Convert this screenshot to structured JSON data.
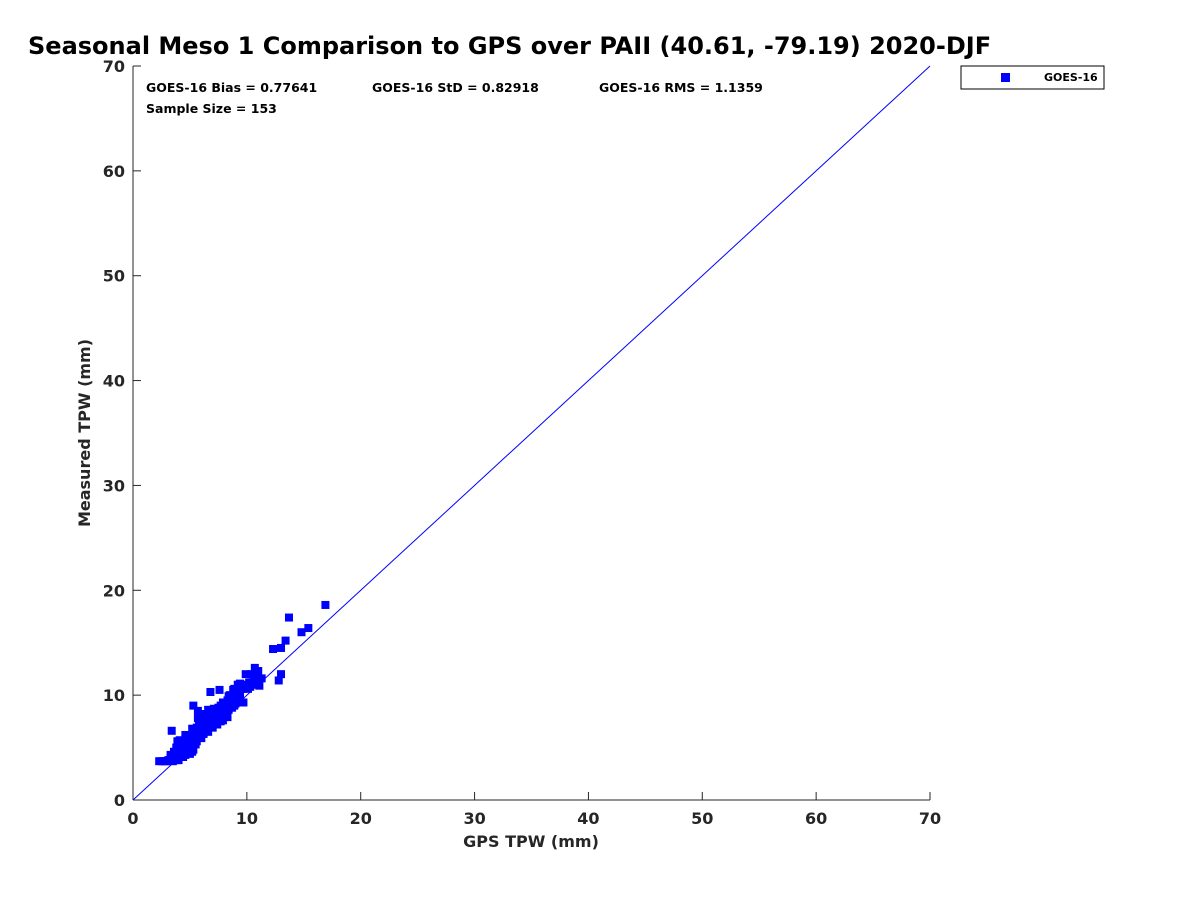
{
  "chart_data": {
    "type": "scatter",
    "title": "Seasonal Meso 1 Comparison to GPS over PAII (40.61, -79.19) 2020-DJF",
    "xlabel": "GPS TPW (mm)",
    "ylabel": "Measured TPW (mm)",
    "xlim": [
      0,
      70
    ],
    "ylim": [
      0,
      70
    ],
    "xticks": [
      0,
      10,
      20,
      30,
      40,
      50,
      60,
      70
    ],
    "yticks": [
      0,
      10,
      20,
      30,
      40,
      50,
      60,
      70
    ],
    "grid": false,
    "legend_position": "outside-top-right",
    "stats": {
      "bias": "GOES-16 Bias = 0.77641",
      "std": "GOES-16 StD = 0.82918",
      "rms": "GOES-16 RMS = 1.1359",
      "sample": "Sample Size = 153"
    },
    "reference_line": {
      "x": [
        0,
        70
      ],
      "y": [
        0,
        70
      ],
      "color": "#0000ff"
    },
    "series": [
      {
        "name": "GOES-16",
        "color": "#0000ff",
        "marker": "square",
        "points": [
          [
            2.3,
            3.7
          ],
          [
            2.6,
            3.7
          ],
          [
            2.9,
            3.7
          ],
          [
            3.1,
            3.8
          ],
          [
            3.3,
            4.0
          ],
          [
            3.5,
            3.7
          ],
          [
            3.6,
            4.2
          ],
          [
            3.8,
            3.9
          ],
          [
            3.9,
            4.5
          ],
          [
            4.0,
            3.8
          ],
          [
            3.6,
            4.6
          ],
          [
            3.8,
            5.0
          ],
          [
            3.9,
            5.6
          ],
          [
            4.1,
            4.3
          ],
          [
            4.2,
            5.0
          ],
          [
            4.3,
            4.7
          ],
          [
            4.4,
            5.3
          ],
          [
            4.5,
            4.5
          ],
          [
            4.6,
            5.8
          ],
          [
            4.7,
            5.0
          ],
          [
            4.8,
            4.7
          ],
          [
            4.9,
            5.5
          ],
          [
            5.0,
            4.4
          ],
          [
            5.0,
            6.0
          ],
          [
            5.1,
            5.2
          ],
          [
            5.2,
            5.6
          ],
          [
            5.3,
            6.1
          ],
          [
            5.3,
            4.8
          ],
          [
            5.4,
            5.9
          ],
          [
            5.5,
            6.5
          ],
          [
            5.6,
            5.6
          ],
          [
            5.6,
            6.9
          ],
          [
            5.7,
            6.2
          ],
          [
            5.8,
            7.4
          ],
          [
            5.9,
            6.6
          ],
          [
            6.0,
            5.9
          ],
          [
            6.0,
            7.7
          ],
          [
            6.1,
            6.9
          ],
          [
            6.2,
            8.2
          ],
          [
            6.2,
            6.3
          ],
          [
            6.3,
            7.2
          ],
          [
            6.4,
            6.7
          ],
          [
            6.5,
            7.9
          ],
          [
            6.6,
            6.5
          ],
          [
            6.6,
            8.6
          ],
          [
            6.7,
            7.3
          ],
          [
            6.8,
            7.0
          ],
          [
            6.9,
            8.1
          ],
          [
            7.0,
            7.6
          ],
          [
            7.0,
            6.9
          ],
          [
            7.1,
            8.7
          ],
          [
            7.2,
            7.4
          ],
          [
            7.3,
            8.0
          ],
          [
            7.4,
            7.2
          ],
          [
            7.5,
            8.5
          ],
          [
            7.6,
            7.8
          ],
          [
            7.7,
            9.0
          ],
          [
            7.8,
            8.2
          ],
          [
            7.9,
            7.6
          ],
          [
            8.0,
            8.8
          ],
          [
            8.1,
            8.3
          ],
          [
            8.2,
            9.2
          ],
          [
            8.3,
            7.9
          ],
          [
            8.4,
            8.6
          ],
          [
            8.5,
            10.0
          ],
          [
            8.6,
            9.4
          ],
          [
            8.7,
            8.8
          ],
          [
            8.8,
            10.5
          ],
          [
            8.9,
            9.0
          ],
          [
            9.0,
            10.2
          ],
          [
            9.1,
            9.6
          ],
          [
            9.2,
            11.0
          ],
          [
            9.3,
            10.4
          ],
          [
            9.4,
            9.9
          ],
          [
            9.5,
            10.8
          ],
          [
            9.6,
            10.6
          ],
          [
            9.7,
            9.3
          ],
          [
            9.8,
            11.0
          ],
          [
            9.9,
            12.0
          ],
          [
            10.1,
            10.6
          ],
          [
            10.2,
            11.2
          ],
          [
            10.4,
            12.0
          ],
          [
            10.6,
            11.4
          ],
          [
            10.7,
            12.6
          ],
          [
            10.9,
            11.8
          ],
          [
            11.0,
            12.3
          ],
          [
            11.1,
            10.9
          ],
          [
            11.3,
            11.6
          ],
          [
            3.4,
            6.6
          ],
          [
            5.3,
            9.0
          ],
          [
            5.7,
            8.5
          ],
          [
            6.8,
            10.3
          ],
          [
            7.6,
            10.5
          ],
          [
            9.5,
            9.3
          ],
          [
            12.3,
            14.4
          ],
          [
            12.8,
            11.4
          ],
          [
            13.0,
            12.0
          ],
          [
            13.0,
            14.5
          ],
          [
            13.4,
            15.2
          ],
          [
            13.7,
            17.4
          ],
          [
            14.8,
            16.0
          ],
          [
            15.4,
            16.4
          ],
          [
            16.9,
            18.6
          ],
          [
            2.8,
            3.7
          ],
          [
            3.2,
            3.8
          ],
          [
            3.7,
            3.8
          ],
          [
            4.0,
            4.4
          ],
          [
            4.3,
            4.9
          ],
          [
            4.6,
            4.3
          ],
          [
            4.9,
            5.2
          ],
          [
            5.2,
            4.6
          ],
          [
            5.5,
            5.3
          ],
          [
            5.8,
            6.0
          ],
          [
            6.1,
            6.4
          ],
          [
            6.4,
            7.1
          ],
          [
            6.7,
            7.7
          ],
          [
            7.1,
            7.9
          ],
          [
            7.4,
            8.3
          ],
          [
            7.7,
            7.5
          ],
          [
            8.0,
            9.1
          ],
          [
            8.3,
            9.5
          ],
          [
            8.6,
            9.7
          ],
          [
            9.0,
            9.2
          ],
          [
            4.4,
            4.1
          ],
          [
            4.7,
            5.4
          ],
          [
            5.0,
            5.8
          ],
          [
            5.4,
            6.3
          ],
          [
            5.9,
            7.1
          ],
          [
            6.3,
            7.5
          ],
          [
            6.5,
            6.8
          ],
          [
            6.9,
            7.4
          ],
          [
            7.3,
            7.7
          ],
          [
            7.8,
            8.6
          ],
          [
            8.2,
            8.1
          ],
          [
            8.7,
            9.2
          ],
          [
            9.3,
            10.0
          ],
          [
            10.0,
            10.9
          ],
          [
            10.5,
            11.0
          ],
          [
            3.3,
            4.3
          ],
          [
            4.1,
            5.7
          ],
          [
            4.6,
            6.2
          ],
          [
            5.2,
            6.8
          ],
          [
            5.7,
            7.8
          ],
          [
            6.2,
            7.8
          ],
          [
            6.6,
            8.2
          ],
          [
            7.2,
            8.4
          ],
          [
            7.5,
            8.8
          ],
          [
            7.9,
            9.3
          ],
          [
            8.4,
            9.9
          ],
          [
            8.9,
            10.6
          ],
          [
            9.4,
            11.1
          ],
          [
            10.3,
            10.8
          ],
          [
            11.0,
            11.5
          ]
        ]
      }
    ]
  }
}
